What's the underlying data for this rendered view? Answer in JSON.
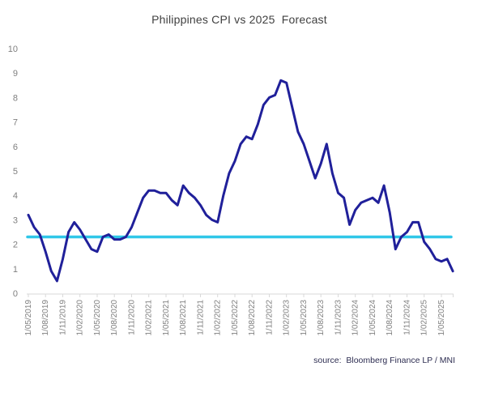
{
  "chart": {
    "title": "Philippines CPI vs 2025  Forecast",
    "source_label": "source:  Bloomberg Finance LP / MNI"
  },
  "chart_data": {
    "type": "line",
    "title": "Philippines CPI vs 2025  Forecast",
    "x_frequency": "monthly",
    "x_start": "1/05/2019",
    "x_end": "1/07/2025",
    "x_tick_labels": [
      "1/05/2019",
      "1/08/2019",
      "1/11/2019",
      "1/02/2020",
      "1/05/2020",
      "1/08/2020",
      "1/11/2020",
      "1/02/2021",
      "1/05/2021",
      "1/08/2021",
      "1/11/2021",
      "1/02/2022",
      "1/05/2022",
      "1/08/2022",
      "1/11/2022",
      "1/02/2023",
      "1/05/2023",
      "1/08/2023",
      "1/11/2023",
      "1/02/2024",
      "1/05/2024",
      "1/08/2024",
      "1/11/2024",
      "1/02/2025",
      "1/05/2025"
    ],
    "series": [
      {
        "name": "Philippines CPI",
        "color": "#20209a",
        "values": [
          3.2,
          2.7,
          2.4,
          1.7,
          0.9,
          0.5,
          1.4,
          2.5,
          2.9,
          2.6,
          2.2,
          1.8,
          1.7,
          2.3,
          2.4,
          2.2,
          2.2,
          2.3,
          2.7,
          3.3,
          3.9,
          4.2,
          4.2,
          4.1,
          4.1,
          3.8,
          3.6,
          4.4,
          4.1,
          3.9,
          3.6,
          3.2,
          3.0,
          2.9,
          4.0,
          4.9,
          5.4,
          6.1,
          6.4,
          6.3,
          6.9,
          7.7,
          8.0,
          8.1,
          8.7,
          8.6,
          7.6,
          6.6,
          6.1,
          5.4,
          4.7,
          5.3,
          6.1,
          4.9,
          4.1,
          3.9,
          2.8,
          3.4,
          3.7,
          3.8,
          3.9,
          3.7,
          4.4,
          3.3,
          1.8,
          2.3,
          2.5,
          2.9,
          2.9,
          2.1,
          1.8,
          1.4,
          1.3,
          1.4,
          0.9
        ]
      },
      {
        "name": "2025 Forecast",
        "color": "#30c7e8",
        "style": "constant-horizontal-line",
        "value": 2.3
      }
    ],
    "ylim": [
      0,
      10
    ],
    "y_ticks": [
      0,
      1,
      2,
      3,
      4,
      5,
      6,
      7,
      8,
      9,
      10
    ],
    "grid": false,
    "legend": "none",
    "source": "source:  Bloomberg Finance LP / MNI"
  },
  "colors": {
    "cpi_line": "#20209a",
    "forecast_line": "#30c7e8",
    "axis": "#d9d9d9",
    "tick_label_text": "#7f7f7f",
    "title_text": "#404040",
    "source_text": "#2e2e52",
    "background": "#ffffff"
  }
}
